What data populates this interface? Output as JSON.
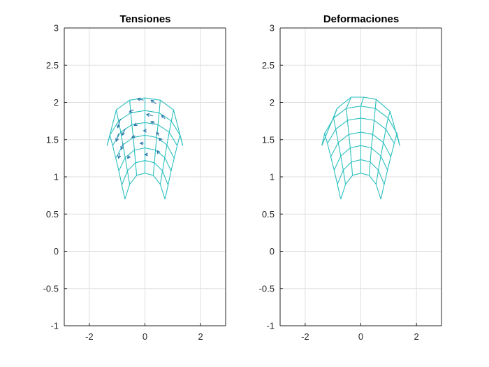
{
  "colors": {
    "mesh": "#2bbfbf",
    "arrows": "#2a77a8",
    "grid": "#dfdfdf",
    "axis": "#262626"
  },
  "chart_data": [
    {
      "type": "line",
      "title": "Tensiones",
      "xlabel": "",
      "ylabel": "",
      "xlim": [
        -2.9,
        2.9
      ],
      "ylim": [
        -1,
        3
      ],
      "xticks": [
        -2,
        0,
        2
      ],
      "xtick_labels": [
        "-2",
        "0",
        "2"
      ],
      "yticks": [
        -1,
        -0.5,
        0,
        0.5,
        1,
        1.5,
        2,
        2.5,
        3
      ],
      "ytick_labels": [
        "-1",
        "-0.5",
        "0",
        "0.5",
        "1",
        "1.5",
        "2",
        "2.5",
        "3"
      ],
      "grid": true,
      "mesh": {
        "description": "curved quadrilateral mesh, 7 arcs by 9 radial lines",
        "arcs": [
          [
            [
              -0.72,
              0.7
            ],
            [
              -0.55,
              0.9
            ],
            [
              -0.3,
              1.02
            ],
            [
              0.0,
              1.05
            ],
            [
              0.3,
              1.02
            ],
            [
              0.55,
              0.9
            ],
            [
              0.72,
              0.7
            ]
          ],
          [
            [
              -0.83,
              0.89
            ],
            [
              -0.63,
              1.08
            ],
            [
              -0.34,
              1.19
            ],
            [
              0.0,
              1.22
            ],
            [
              0.34,
              1.19
            ],
            [
              0.63,
              1.08
            ],
            [
              0.83,
              0.89
            ]
          ],
          [
            [
              -0.94,
              1.08
            ],
            [
              -0.71,
              1.26
            ],
            [
              -0.38,
              1.36
            ],
            [
              0.0,
              1.39
            ],
            [
              0.38,
              1.36
            ],
            [
              0.71,
              1.26
            ],
            [
              0.94,
              1.08
            ]
          ],
          [
            [
              -1.05,
              1.25
            ],
            [
              -0.79,
              1.43
            ],
            [
              -0.42,
              1.53
            ],
            [
              0.0,
              1.56
            ],
            [
              0.42,
              1.53
            ],
            [
              0.79,
              1.43
            ],
            [
              1.05,
              1.25
            ]
          ],
          [
            [
              -1.16,
              1.42
            ],
            [
              -0.87,
              1.6
            ],
            [
              -0.47,
              1.7
            ],
            [
              0.0,
              1.73
            ],
            [
              0.47,
              1.7
            ],
            [
              0.87,
              1.6
            ],
            [
              1.16,
              1.42
            ]
          ],
          [
            [
              -1.26,
              1.56
            ],
            [
              -0.95,
              1.75
            ],
            [
              -0.51,
              1.86
            ],
            [
              0.0,
              1.89
            ],
            [
              0.51,
              1.86
            ],
            [
              0.95,
              1.75
            ],
            [
              1.26,
              1.56
            ]
          ],
          [
            [
              -1.36,
              1.42
            ],
            [
              -1.03,
              1.9
            ],
            [
              -0.55,
              2.03
            ],
            [
              0.0,
              2.06
            ],
            [
              0.55,
              2.03
            ],
            [
              1.03,
              1.9
            ],
            [
              1.36,
              1.42
            ]
          ]
        ]
      },
      "arrows": [
        {
          "x": -0.05,
          "y": 2.03,
          "dx": -0.22,
          "dy": 0.02
        },
        {
          "x": 0.4,
          "y": 1.98,
          "dx": -0.18,
          "dy": 0.05
        },
        {
          "x": -0.4,
          "y": 1.9,
          "dx": -0.16,
          "dy": -0.03
        },
        {
          "x": -0.88,
          "y": 1.78,
          "dx": -0.1,
          "dy": -0.12
        },
        {
          "x": 0.28,
          "y": 1.82,
          "dx": -0.22,
          "dy": 0.02
        },
        {
          "x": 0.72,
          "y": 1.78,
          "dx": -0.12,
          "dy": 0.05
        },
        {
          "x": -0.7,
          "y": 1.65,
          "dx": -0.12,
          "dy": -0.09
        },
        {
          "x": -0.25,
          "y": 1.72,
          "dx": -0.14,
          "dy": -0.03
        },
        {
          "x": 0.35,
          "y": 1.72,
          "dx": -0.14,
          "dy": 0.02
        },
        {
          "x": -0.95,
          "y": 1.58,
          "dx": -0.08,
          "dy": -0.1
        },
        {
          "x": -0.35,
          "y": 1.55,
          "dx": -0.12,
          "dy": -0.02
        },
        {
          "x": 0.05,
          "y": 1.62,
          "dx": -0.1,
          "dy": 0.0
        },
        {
          "x": 0.5,
          "y": 1.55,
          "dx": -0.08,
          "dy": 0.05
        },
        {
          "x": -0.78,
          "y": 1.45,
          "dx": -0.07,
          "dy": -0.08
        },
        {
          "x": -0.05,
          "y": 1.45,
          "dx": -0.12,
          "dy": 0.0
        },
        {
          "x": 0.6,
          "y": 1.48,
          "dx": -0.08,
          "dy": 0.04
        },
        {
          "x": -0.9,
          "y": 1.32,
          "dx": -0.05,
          "dy": -0.07
        },
        {
          "x": -0.55,
          "y": 1.28,
          "dx": -0.08,
          "dy": -0.03
        },
        {
          "x": 0.1,
          "y": 1.3,
          "dx": -0.1,
          "dy": 0.0
        },
        {
          "x": 0.5,
          "y": 1.32,
          "dx": -0.05,
          "dy": 0.03
        }
      ]
    },
    {
      "type": "line",
      "title": "Deformaciones",
      "xlabel": "",
      "ylabel": "",
      "xlim": [
        -2.9,
        2.9
      ],
      "ylim": [
        -1,
        3
      ],
      "xticks": [
        -2,
        0,
        2
      ],
      "xtick_labels": [
        "-2",
        "0",
        "2"
      ],
      "yticks": [
        -1,
        -0.5,
        0,
        0.5,
        1,
        1.5,
        2,
        2.5,
        3
      ],
      "ytick_labels": [
        "-1",
        "-0.5",
        "0",
        "0.5",
        "1",
        "1.5",
        "2",
        "2.5",
        "3"
      ],
      "grid": true,
      "mesh": {
        "description": "deformed curved quadrilateral mesh",
        "arcs": [
          [
            [
              -0.72,
              0.7
            ],
            [
              -0.55,
              0.9
            ],
            [
              -0.3,
              1.02
            ],
            [
              0.0,
              1.05
            ],
            [
              0.3,
              1.02
            ],
            [
              0.55,
              0.9
            ],
            [
              0.72,
              0.7
            ]
          ],
          [
            [
              -0.84,
              0.9
            ],
            [
              -0.63,
              1.09
            ],
            [
              -0.34,
              1.2
            ],
            [
              0.0,
              1.23
            ],
            [
              0.34,
              1.2
            ],
            [
              0.63,
              1.09
            ],
            [
              0.84,
              0.9
            ]
          ],
          [
            [
              -0.96,
              1.09
            ],
            [
              -0.72,
              1.28
            ],
            [
              -0.38,
              1.39
            ],
            [
              0.0,
              1.42
            ],
            [
              0.38,
              1.39
            ],
            [
              0.72,
              1.28
            ],
            [
              0.96,
              1.09
            ]
          ],
          [
            [
              -1.08,
              1.27
            ],
            [
              -0.81,
              1.46
            ],
            [
              -0.43,
              1.57
            ],
            [
              0.0,
              1.6
            ],
            [
              0.43,
              1.57
            ],
            [
              0.81,
              1.46
            ],
            [
              1.08,
              1.27
            ]
          ],
          [
            [
              -1.2,
              1.45
            ],
            [
              -0.9,
              1.64
            ],
            [
              -0.48,
              1.76
            ],
            [
              0.0,
              1.79
            ],
            [
              0.48,
              1.76
            ],
            [
              0.9,
              1.64
            ],
            [
              1.2,
              1.45
            ]
          ],
          [
            [
              -1.3,
              1.58
            ],
            [
              -0.98,
              1.79
            ],
            [
              -0.52,
              1.92
            ],
            [
              0.0,
              1.95
            ],
            [
              0.52,
              1.92
            ],
            [
              0.98,
              1.79
            ],
            [
              1.3,
              1.58
            ]
          ],
          [
            [
              -1.4,
              1.42
            ],
            [
              -0.85,
              1.92
            ],
            [
              -0.35,
              2.07
            ],
            [
              0.1,
              2.07
            ],
            [
              0.55,
              2.04
            ],
            [
              1.05,
              1.88
            ],
            [
              1.4,
              1.42
            ]
          ]
        ]
      },
      "arrows": []
    }
  ]
}
